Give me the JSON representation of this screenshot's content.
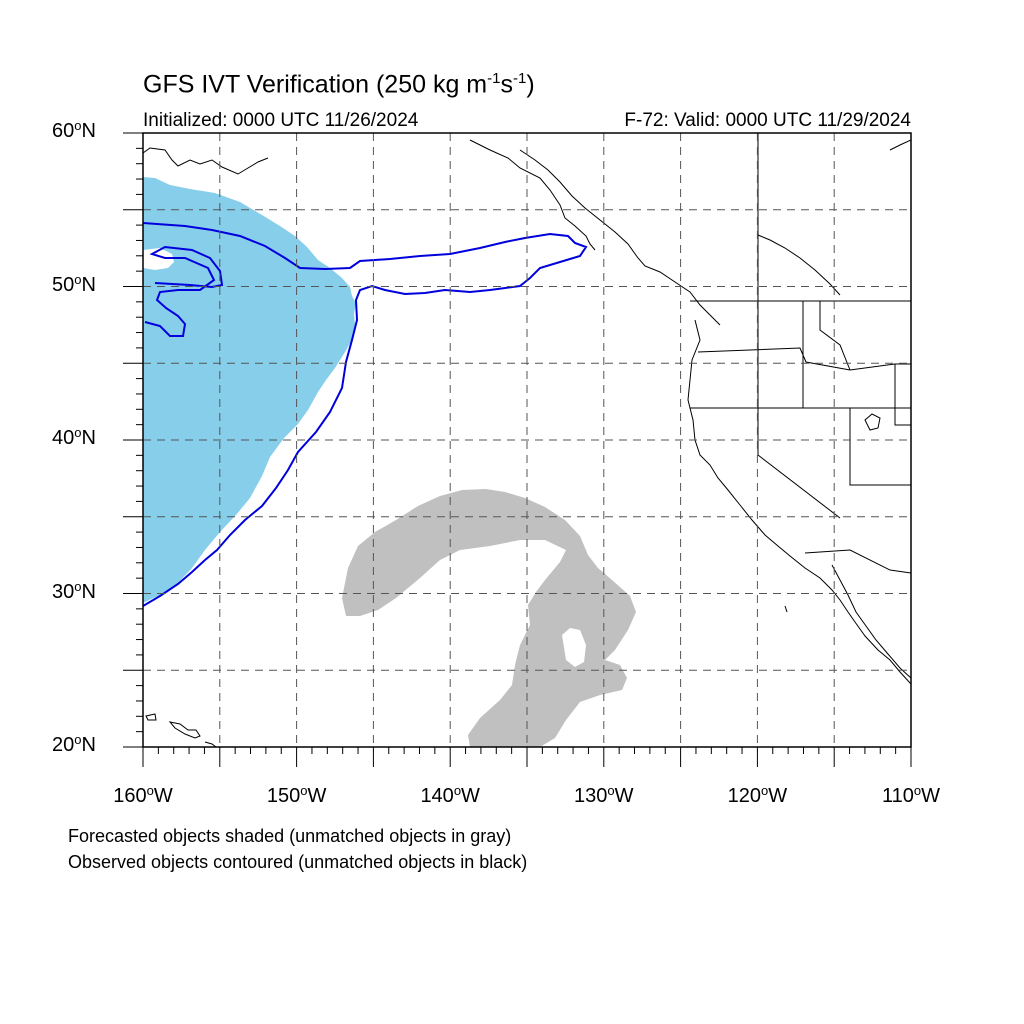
{
  "header": {
    "title_main": "GFS IVT Verification (250 kg m",
    "title_exp1": "-1",
    "title_mid": "s",
    "title_exp2": "-1",
    "title_end": ")",
    "init_text": "Initialized: 0000 UTC 11/26/2024",
    "valid_text": "F-72: Valid: 0000 UTC 11/29/2024"
  },
  "map": {
    "projection": "cylindrical-equidistant",
    "lon_range": [
      -160,
      -110
    ],
    "lat_range": [
      20,
      60
    ],
    "grid": "dashed",
    "lat_ticks": [
      {
        "value": 20,
        "num": "20",
        "hemi": "N"
      },
      {
        "value": 30,
        "num": "30",
        "hemi": "N"
      },
      {
        "value": 40,
        "num": "40",
        "hemi": "N"
      },
      {
        "value": 50,
        "num": "50",
        "hemi": "N"
      },
      {
        "value": 60,
        "num": "60",
        "hemi": "N"
      }
    ],
    "lon_ticks": [
      {
        "value": -160,
        "num": "160",
        "hemi": "W"
      },
      {
        "value": -150,
        "num": "150",
        "hemi": "W"
      },
      {
        "value": -140,
        "num": "140",
        "hemi": "W"
      },
      {
        "value": -130,
        "num": "130",
        "hemi": "W"
      },
      {
        "value": -120,
        "num": "120",
        "hemi": "W"
      },
      {
        "value": -110,
        "num": "110",
        "hemi": "W"
      }
    ],
    "colors": {
      "matched_forecast_fill": "#87ceeb",
      "unmatched_forecast_fill": "#c0c0c0",
      "observed_contour": "#0000dd",
      "coastline": "#000000",
      "grid": "#555555"
    }
  },
  "footer": {
    "note_forecast": "Forecasted objects shaded (unmatched objects in gray)",
    "note_observed": "Observed objects contoured (unmatched objects in black)"
  }
}
